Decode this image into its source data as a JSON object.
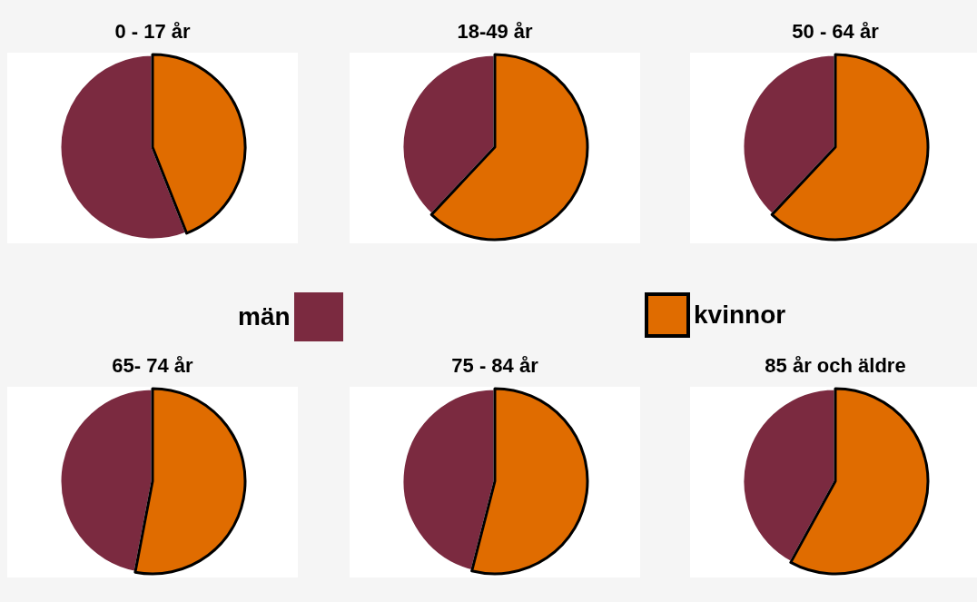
{
  "chart_data": [
    {
      "type": "pie",
      "title": "0 - 17 år",
      "categories": [
        "män",
        "kvinnor"
      ],
      "values": [
        56,
        44
      ],
      "colors": [
        "#7b2a40",
        "#e06c00"
      ],
      "legend": "center"
    },
    {
      "type": "pie",
      "title": "18-49 år",
      "categories": [
        null,
        null
      ],
      "values": [
        38,
        62
      ],
      "colors": [
        "#7b2a40",
        "#e06c00"
      ]
    },
    {
      "type": "pie",
      "title": "50 - 64 år",
      "categories": [
        null,
        null
      ],
      "values": [
        38,
        62
      ],
      "colors": [
        "#7b2a40",
        "#e06c00"
      ]
    },
    {
      "type": "pie",
      "title": "65- 74 år",
      "categories": [
        null,
        null
      ],
      "values": [
        47,
        53
      ],
      "colors": [
        "#7b2a40",
        "#e06c00"
      ]
    },
    {
      "type": "pie",
      "title": "75 - 84 år",
      "categories": [
        null,
        null
      ],
      "values": [
        46,
        54
      ],
      "colors": [
        "#7b2a40",
        "#e06c00"
      ]
    },
    {
      "type": "pie",
      "title": "85 år och äldre",
      "categories": [
        null,
        null
      ],
      "values": [
        42,
        58
      ],
      "colors": [
        "#7b2a40",
        "#e06c00"
      ]
    }
  ]
}
